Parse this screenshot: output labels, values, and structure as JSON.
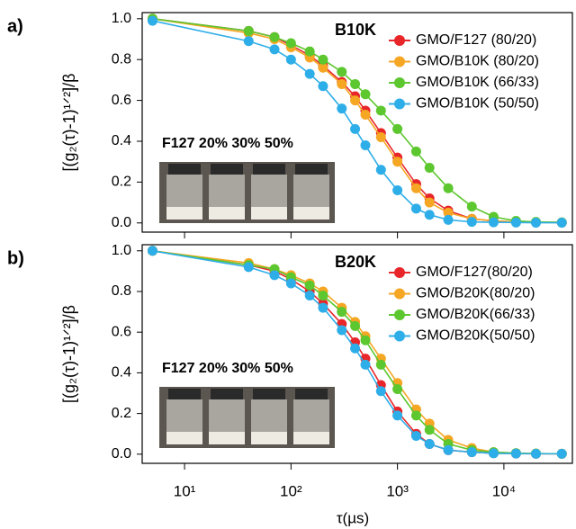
{
  "chart_data": [
    {
      "type": "line",
      "panel_label": "a)",
      "annotation": "B10K",
      "photo_label": "F127 20% 30% 50%",
      "y_label": "[(g₂(τ)-1)¹ᐟ²]/β",
      "log_x": true,
      "x": [
        5,
        40,
        70,
        100,
        150,
        200,
        300,
        400,
        500,
        700,
        1000,
        1500,
        2000,
        3000,
        5000,
        8000,
        13000,
        20000,
        35000
      ],
      "xlim": [
        4,
        44000
      ],
      "xticks": [
        10,
        100,
        1000,
        10000
      ],
      "ylim": [
        -0.045,
        1.03
      ],
      "yticks": [
        {
          "value": 0,
          "label": "0.0"
        },
        0.2,
        0.4,
        0.6,
        0.8,
        {
          "value": 1,
          "label": "1.0"
        }
      ],
      "series": [
        {
          "name": "GMO/F127 (80/20)",
          "color": "#e8262a",
          "values": [
            1.0,
            0.94,
            0.91,
            0.87,
            0.82,
            0.77,
            0.69,
            0.62,
            0.55,
            0.44,
            0.32,
            0.19,
            0.12,
            0.06,
            0.02,
            0.01,
            0.005,
            0.003,
            0.002
          ]
        },
        {
          "name": "GMO/B10K (80/20)",
          "color": "#f5a623",
          "values": [
            1.0,
            0.93,
            0.9,
            0.86,
            0.81,
            0.76,
            0.68,
            0.6,
            0.53,
            0.42,
            0.3,
            0.17,
            0.1,
            0.05,
            0.02,
            0.01,
            0.005,
            0.003,
            0.002
          ]
        },
        {
          "name": "GMO/B10K (66/33)",
          "color": "#5cc72e",
          "values": [
            1.0,
            0.94,
            0.91,
            0.88,
            0.84,
            0.8,
            0.74,
            0.68,
            0.63,
            0.55,
            0.46,
            0.35,
            0.27,
            0.17,
            0.08,
            0.03,
            0.01,
            0.005,
            0.003
          ]
        },
        {
          "name": "GMO/B10K (50/50)",
          "color": "#2eaee8",
          "values": [
            0.99,
            0.89,
            0.85,
            0.8,
            0.73,
            0.67,
            0.56,
            0.46,
            0.38,
            0.26,
            0.16,
            0.07,
            0.04,
            0.015,
            0.005,
            0.003,
            0.002,
            0.001,
            0.001
          ]
        }
      ]
    },
    {
      "type": "line",
      "panel_label": "b)",
      "annotation": "B20K",
      "photo_label": "F127 20% 30% 50%",
      "y_label": "[(g₂(τ)-1)¹ᐟ²]/β",
      "x_label": "τ(µs)",
      "log_x": true,
      "x": [
        5,
        40,
        70,
        100,
        150,
        200,
        300,
        400,
        500,
        700,
        1000,
        1500,
        2000,
        3000,
        5000,
        8000,
        13000,
        20000,
        35000
      ],
      "xlim": [
        4,
        44000
      ],
      "xticks": [
        {
          "value": 10,
          "label": "10¹"
        },
        {
          "value": 100,
          "label": "10²"
        },
        {
          "value": 1000,
          "label": "10³"
        },
        {
          "value": 10000,
          "label": "10⁴"
        }
      ],
      "ylim": [
        -0.045,
        1.03
      ],
      "yticks": [
        {
          "value": 0,
          "label": "0.0"
        },
        0.2,
        0.4,
        0.6,
        0.8,
        {
          "value": 1,
          "label": "1.0"
        }
      ],
      "series": [
        {
          "name": "GMO/F127(80/20)",
          "color": "#e8262a",
          "values": [
            1.0,
            0.93,
            0.9,
            0.86,
            0.8,
            0.74,
            0.64,
            0.55,
            0.47,
            0.34,
            0.21,
            0.1,
            0.05,
            0.02,
            0.01,
            0.005,
            0.003,
            0.002,
            0.002
          ]
        },
        {
          "name": "GMO/B20K(80/20)",
          "color": "#f5a623",
          "values": [
            1.0,
            0.94,
            0.91,
            0.88,
            0.84,
            0.8,
            0.72,
            0.65,
            0.58,
            0.47,
            0.35,
            0.22,
            0.15,
            0.07,
            0.03,
            0.01,
            0.005,
            0.003,
            0.002
          ]
        },
        {
          "name": "GMO/B20K(66/33)",
          "color": "#5cc72e",
          "values": [
            1.0,
            0.93,
            0.91,
            0.87,
            0.83,
            0.78,
            0.7,
            0.63,
            0.56,
            0.44,
            0.32,
            0.19,
            0.12,
            0.05,
            0.02,
            0.01,
            0.005,
            0.003,
            0.002
          ]
        },
        {
          "name": "GMO/B20K(50/50)",
          "color": "#2eaee8",
          "values": [
            1.0,
            0.92,
            0.88,
            0.84,
            0.78,
            0.72,
            0.61,
            0.52,
            0.44,
            0.31,
            0.19,
            0.09,
            0.05,
            0.02,
            0.01,
            0.004,
            0.003,
            0.002,
            0.002
          ]
        }
      ]
    }
  ]
}
